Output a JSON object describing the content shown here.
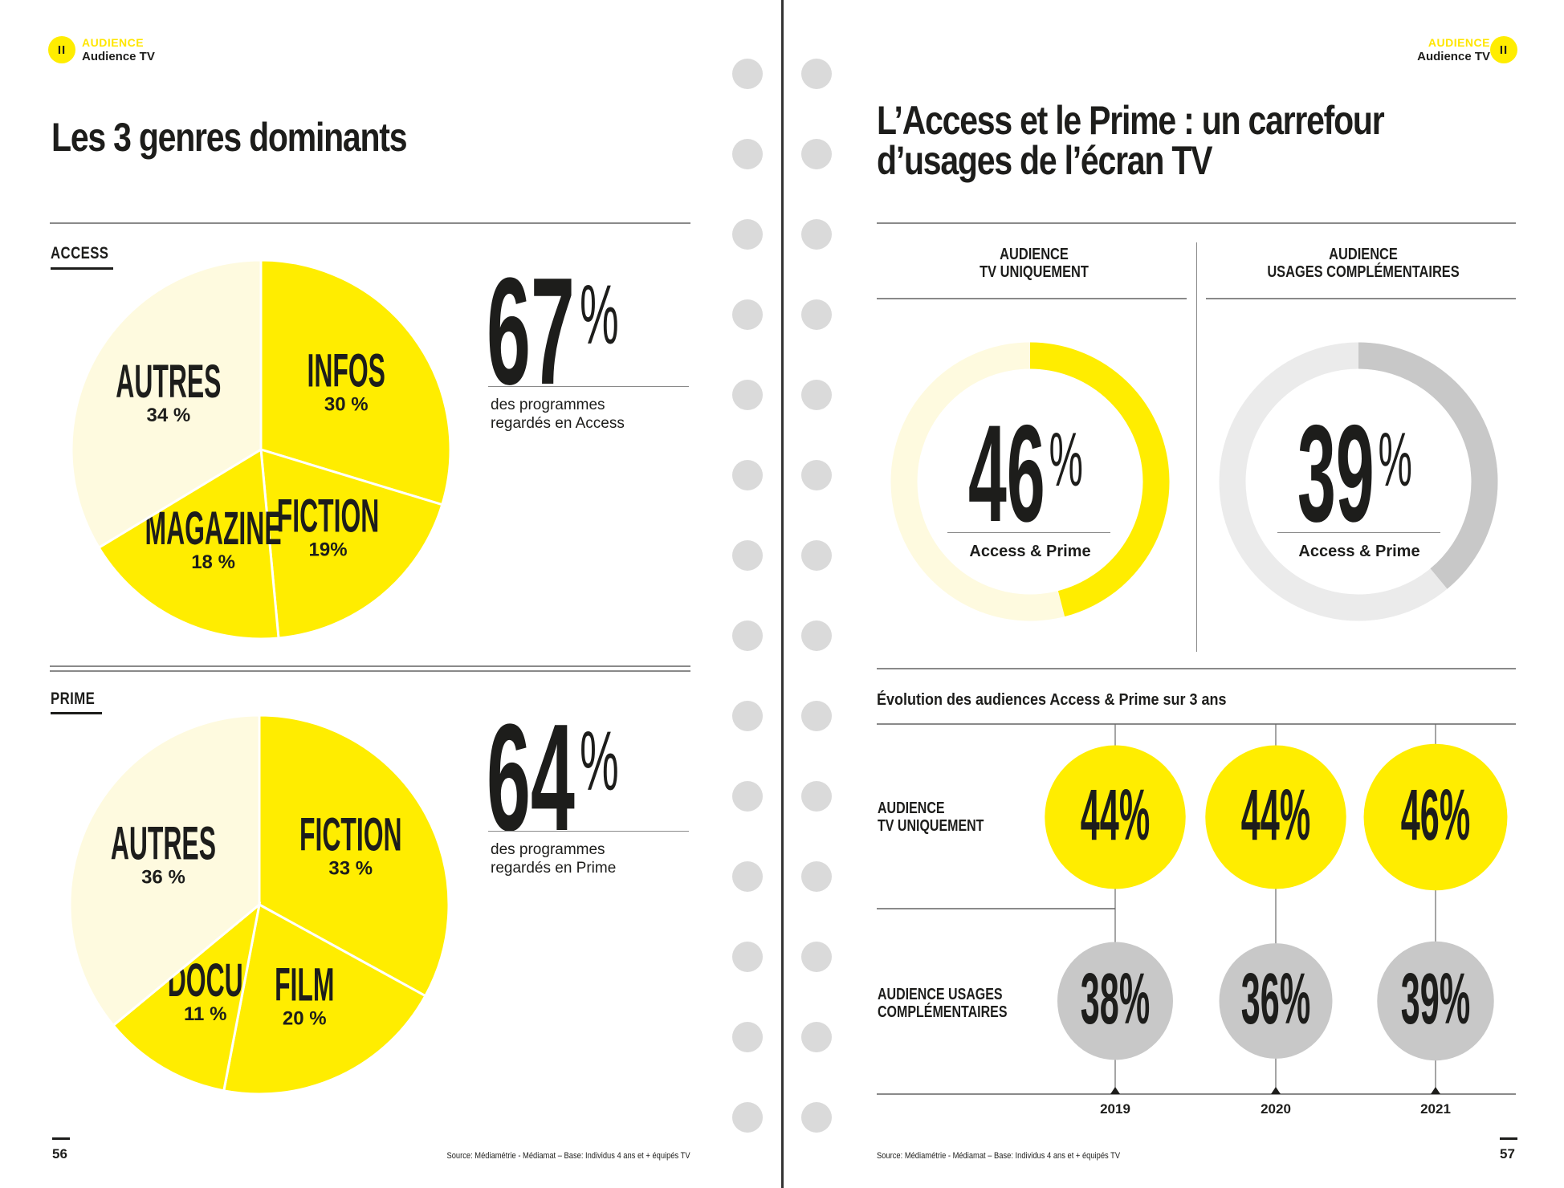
{
  "colors": {
    "yellow": "#FFED00",
    "pale_yellow": "#FEFADF",
    "grey": "#C8C8C8",
    "light_grey": "#EBEBEB",
    "text": "#1D1D1B",
    "hole": "#DADADA"
  },
  "left_page": {
    "header": {
      "badge": "II",
      "kicker": "AUDIENCE",
      "subtitle": "Audience TV"
    },
    "title": "Les 3 genres dominants",
    "access": {
      "label": "ACCESS",
      "stat": "67",
      "stat_unit": "%",
      "caption_line1": "des programmes",
      "caption_line2": "regardés en Access"
    },
    "prime": {
      "label": "PRIME",
      "stat": "64",
      "stat_unit": "%",
      "caption_line1": "des programmes",
      "caption_line2": "regardés en Prime"
    },
    "footer": {
      "page_number": "56",
      "source": "Source: Médiamétrie - Médiamat – Base: Individus 4 ans et + équipés TV"
    }
  },
  "right_page": {
    "header": {
      "badge": "II",
      "kicker": "AUDIENCE",
      "subtitle": "Audience TV"
    },
    "title_line1": "L’Access et le Prime : un carrefour",
    "title_line2": "d’usages de l’écran TV",
    "col1": {
      "line1": "AUDIENCE",
      "line2": "TV UNIQUEMENT",
      "value": "46",
      "unit": "%",
      "label": "Access & Prime"
    },
    "col2": {
      "line1": "AUDIENCE",
      "line2": "USAGES COMPLÉMENTAIRES",
      "value": "39",
      "unit": "%",
      "label": "Access & Prime"
    },
    "evolution_title": "Évolution des audiences Access & Prime sur 3 ans",
    "row1_line1": "AUDIENCE",
    "row1_line2": "TV UNIQUEMENT",
    "row2_line1": "AUDIENCE USAGES",
    "row2_line2": "COMPLÉMENTAIRES",
    "footer": {
      "page_number": "57",
      "source": "Source: Médiamétrie - Médiamat – Base: Individus 4 ans et + équipés TV"
    }
  },
  "chart_data": [
    {
      "id": "access_pie",
      "type": "pie",
      "title": "ACCESS",
      "categories": [
        "INFOS",
        "FICTION",
        "MAGAZINE",
        "AUTRES"
      ],
      "values": [
        30,
        19,
        18,
        34
      ],
      "labels": [
        "30 %",
        "19%",
        "18 %",
        "34 %"
      ],
      "highlight": [
        true,
        true,
        true,
        false
      ]
    },
    {
      "id": "prime_pie",
      "type": "pie",
      "title": "PRIME",
      "categories": [
        "FICTION",
        "FILM",
        "DOCU",
        "AUTRES"
      ],
      "values": [
        33,
        20,
        11,
        36
      ],
      "labels": [
        "33 %",
        "20 %",
        "11 %",
        "36 %"
      ],
      "highlight": [
        true,
        true,
        true,
        false
      ]
    },
    {
      "id": "donut_tv_only",
      "type": "pie",
      "title": "AUDIENCE TV UNIQUEMENT",
      "values": [
        46,
        54
      ],
      "label": "Access & Prime",
      "style": "yellow"
    },
    {
      "id": "donut_complementary",
      "type": "pie",
      "title": "AUDIENCE USAGES COMPLÉMENTAIRES",
      "values": [
        39,
        61
      ],
      "label": "Access & Prime",
      "style": "grey"
    },
    {
      "id": "evolution",
      "type": "table",
      "title": "Évolution des audiences Access & Prime sur 3 ans",
      "categories": [
        "2019",
        "2020",
        "2021"
      ],
      "series": [
        {
          "name": "AUDIENCE TV UNIQUEMENT",
          "values": [
            44,
            44,
            46
          ],
          "labels": [
            "44%",
            "44%",
            "46%"
          ]
        },
        {
          "name": "AUDIENCE USAGES COMPLÉMENTAIRES",
          "values": [
            38,
            36,
            39
          ],
          "labels": [
            "38%",
            "36%",
            "39%"
          ]
        }
      ]
    }
  ]
}
